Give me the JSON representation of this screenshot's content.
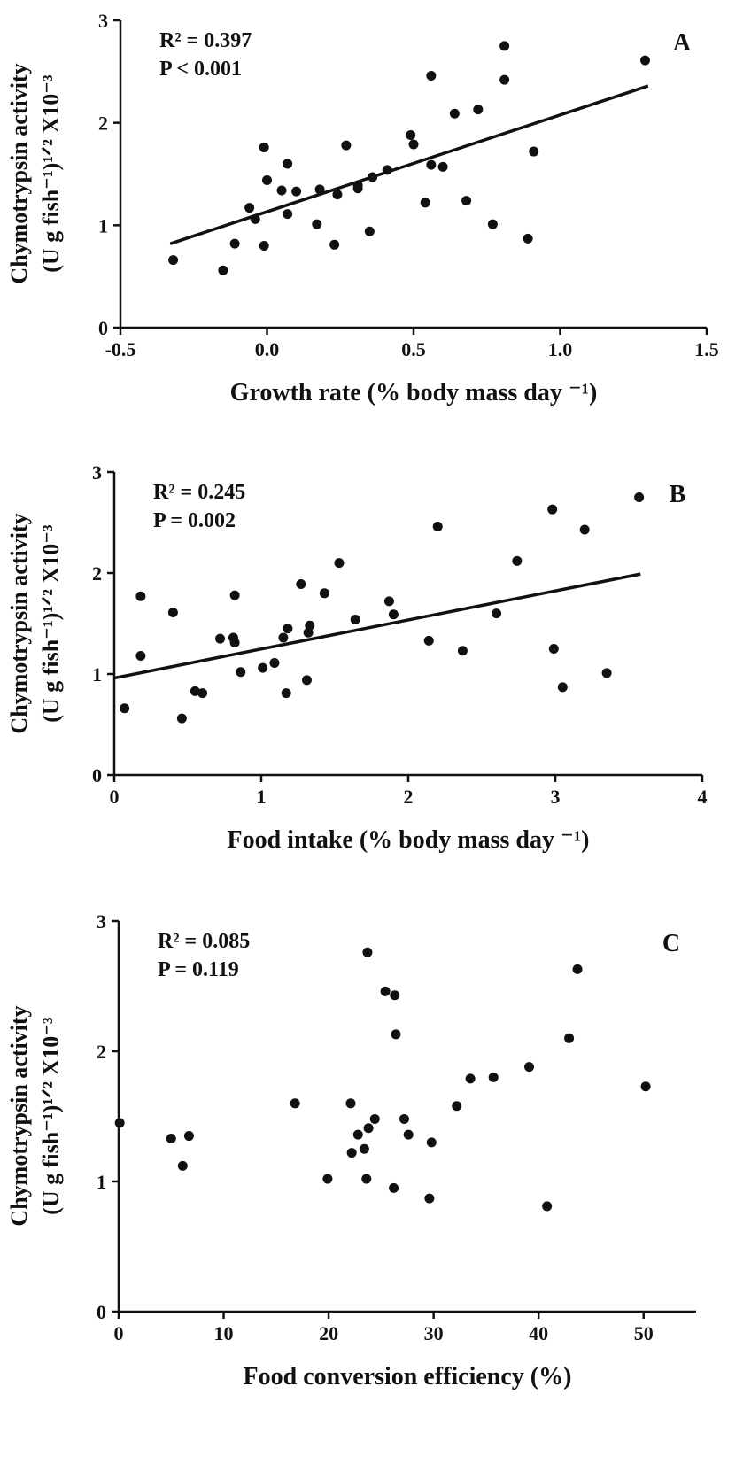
{
  "chart_data": [
    {
      "type": "scatter",
      "panel_label": "A",
      "stats": [
        "R² = 0.397",
        "P < 0.001"
      ],
      "ylabel": [
        "Chymotrypsin activity",
        "(U g fish⁻¹)¹ᐟ² X10⁻³"
      ],
      "xlabel": "Growth rate (% body mass day ⁻¹)",
      "xlim": [
        -0.5,
        1.5
      ],
      "ylim": [
        0,
        3
      ],
      "xticks": [
        -0.5,
        0.0,
        0.5,
        1.0,
        1.5
      ],
      "xtick_labels": [
        "-0.5",
        "0.0",
        "0.5",
        "1.0",
        "1.5"
      ],
      "yticks": [
        0,
        1,
        2,
        3
      ],
      "ytick_labels": [
        "0",
        "1",
        "2",
        "3"
      ],
      "grid": false,
      "fit_line": {
        "x": [
          -0.33,
          1.3
        ],
        "y": [
          0.82,
          2.36
        ]
      },
      "points": [
        [
          -0.32,
          0.66
        ],
        [
          -0.15,
          0.56
        ],
        [
          -0.11,
          0.82
        ],
        [
          -0.06,
          1.17
        ],
        [
          -0.04,
          1.06
        ],
        [
          -0.01,
          1.76
        ],
        [
          -0.01,
          0.8
        ],
        [
          0.0,
          1.44
        ],
        [
          0.05,
          1.34
        ],
        [
          0.07,
          1.6
        ],
        [
          0.07,
          1.11
        ],
        [
          0.1,
          1.33
        ],
        [
          0.17,
          1.01
        ],
        [
          0.18,
          1.35
        ],
        [
          0.23,
          0.81
        ],
        [
          0.24,
          1.3
        ],
        [
          0.27,
          1.78
        ],
        [
          0.31,
          1.39
        ],
        [
          0.31,
          1.36
        ],
        [
          0.35,
          0.94
        ],
        [
          0.36,
          1.47
        ],
        [
          0.41,
          1.54
        ],
        [
          0.49,
          1.88
        ],
        [
          0.5,
          1.79
        ],
        [
          0.54,
          1.22
        ],
        [
          0.56,
          2.46
        ],
        [
          0.56,
          1.59
        ],
        [
          0.6,
          1.57
        ],
        [
          0.64,
          2.09
        ],
        [
          0.68,
          1.24
        ],
        [
          0.72,
          2.13
        ],
        [
          0.77,
          1.01
        ],
        [
          0.81,
          2.42
        ],
        [
          0.81,
          2.75
        ],
        [
          0.89,
          0.87
        ],
        [
          0.91,
          1.72
        ],
        [
          1.29,
          2.61
        ]
      ]
    },
    {
      "type": "scatter",
      "panel_label": "B",
      "stats": [
        "R² = 0.245",
        "P = 0.002"
      ],
      "ylabel": [
        "Chymotrypsin activity",
        "(U g fish⁻¹)¹ᐟ² X10⁻³"
      ],
      "xlabel": "Food intake (% body mass day ⁻¹)",
      "xlim": [
        0,
        4
      ],
      "ylim": [
        0,
        3
      ],
      "xticks": [
        0,
        1,
        2,
        3,
        4
      ],
      "xtick_labels": [
        "0",
        "1",
        "2",
        "3",
        "4"
      ],
      "yticks": [
        0,
        1,
        2,
        3
      ],
      "ytick_labels": [
        "0",
        "1",
        "2",
        "3"
      ],
      "grid": false,
      "fit_line": {
        "x": [
          0,
          3.58
        ],
        "y": [
          0.96,
          1.99
        ]
      },
      "points": [
        [
          0.07,
          0.66
        ],
        [
          0.18,
          1.77
        ],
        [
          0.18,
          1.18
        ],
        [
          0.4,
          1.61
        ],
        [
          0.46,
          0.56
        ],
        [
          0.55,
          0.83
        ],
        [
          0.6,
          0.81
        ],
        [
          0.72,
          1.35
        ],
        [
          0.81,
          1.36
        ],
        [
          0.82,
          1.31
        ],
        [
          0.82,
          1.78
        ],
        [
          0.86,
          1.02
        ],
        [
          1.01,
          1.06
        ],
        [
          1.09,
          1.11
        ],
        [
          1.15,
          1.36
        ],
        [
          1.17,
          0.81
        ],
        [
          1.18,
          1.45
        ],
        [
          1.27,
          1.89
        ],
        [
          1.31,
          0.94
        ],
        [
          1.32,
          1.41
        ],
        [
          1.33,
          1.48
        ],
        [
          1.43,
          1.8
        ],
        [
          1.53,
          2.1
        ],
        [
          1.64,
          1.54
        ],
        [
          1.87,
          1.72
        ],
        [
          1.9,
          1.59
        ],
        [
          2.14,
          1.33
        ],
        [
          2.2,
          2.46
        ],
        [
          2.37,
          1.23
        ],
        [
          2.6,
          1.6
        ],
        [
          2.74,
          2.12
        ],
        [
          2.98,
          2.63
        ],
        [
          2.99,
          1.25
        ],
        [
          3.05,
          0.87
        ],
        [
          3.2,
          2.43
        ],
        [
          3.35,
          1.01
        ],
        [
          3.57,
          2.75
        ]
      ]
    },
    {
      "type": "scatter",
      "panel_label": "C",
      "stats": [
        "R² = 0.085",
        "P = 0.119"
      ],
      "ylabel": [
        "Chymotrypsin activity",
        "(U g fish⁻¹)¹ᐟ² X10⁻³"
      ],
      "xlabel": "Food conversion efficiency (%)",
      "xlim": [
        0,
        55
      ],
      "ylim": [
        0,
        3
      ],
      "xticks": [
        0,
        10,
        20,
        30,
        40,
        50
      ],
      "xtick_labels": [
        "0",
        "10",
        "20",
        "30",
        "40",
        "50"
      ],
      "yticks": [
        0,
        1,
        2,
        3
      ],
      "ytick_labels": [
        "0",
        "1",
        "2",
        "3"
      ],
      "grid": false,
      "fit_line": null,
      "points": [
        [
          0.1,
          1.45
        ],
        [
          5.0,
          1.33
        ],
        [
          6.1,
          1.12
        ],
        [
          6.7,
          1.35
        ],
        [
          16.8,
          1.6
        ],
        [
          19.9,
          1.02
        ],
        [
          22.1,
          1.6
        ],
        [
          22.2,
          1.22
        ],
        [
          22.8,
          1.36
        ],
        [
          23.4,
          1.25
        ],
        [
          23.6,
          1.02
        ],
        [
          23.7,
          2.76
        ],
        [
          23.8,
          1.41
        ],
        [
          24.4,
          1.48
        ],
        [
          25.4,
          2.46
        ],
        [
          26.2,
          0.95
        ],
        [
          26.3,
          2.43
        ],
        [
          26.4,
          2.13
        ],
        [
          27.2,
          1.48
        ],
        [
          27.6,
          1.36
        ],
        [
          29.6,
          0.87
        ],
        [
          29.8,
          1.3
        ],
        [
          32.2,
          1.58
        ],
        [
          33.5,
          1.79
        ],
        [
          35.7,
          1.8
        ],
        [
          39.1,
          1.88
        ],
        [
          40.8,
          0.81
        ],
        [
          42.9,
          2.1
        ],
        [
          43.7,
          2.63
        ],
        [
          50.2,
          1.73
        ]
      ]
    }
  ]
}
